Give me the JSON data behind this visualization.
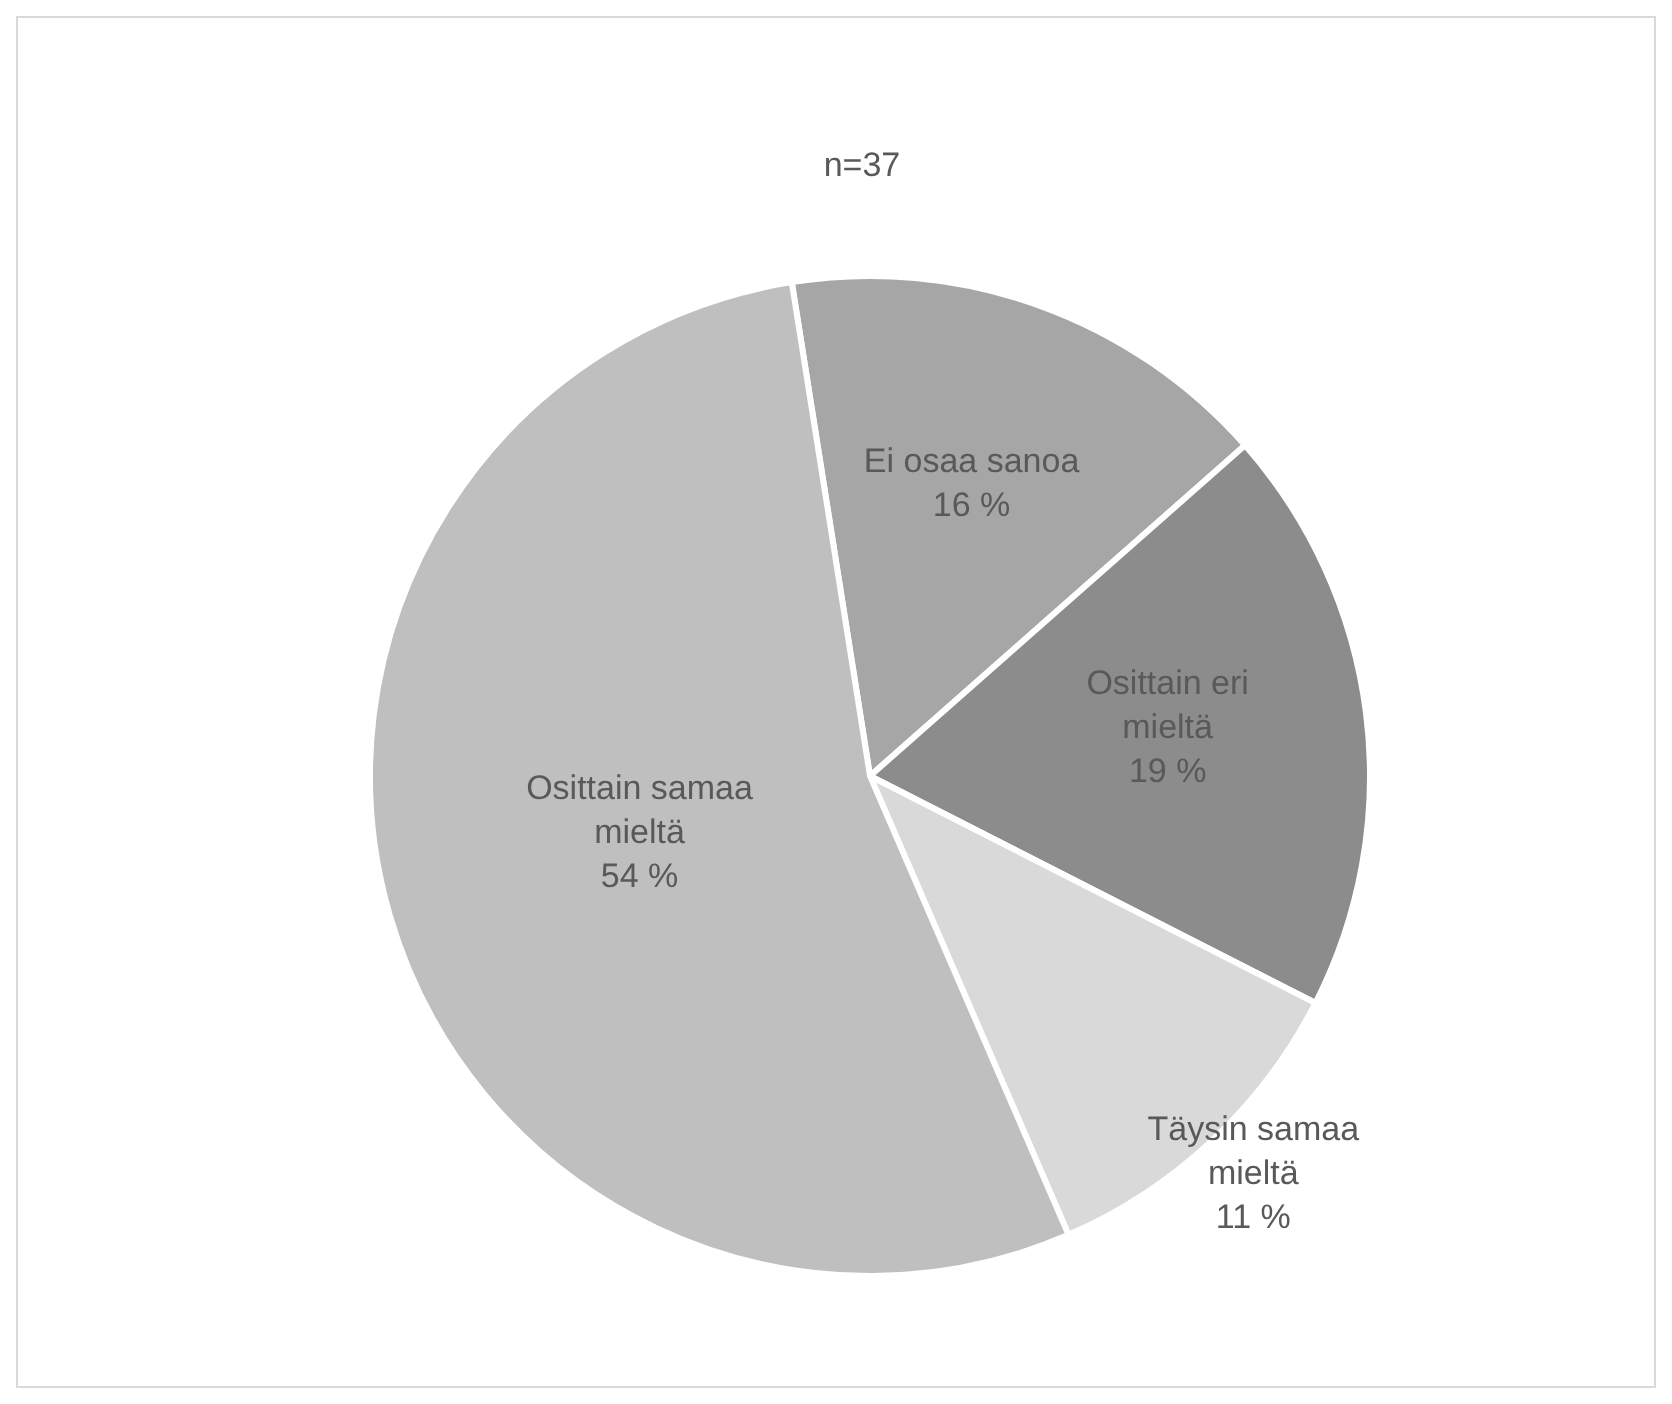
{
  "chart_data": {
    "type": "pie",
    "title": "n=37",
    "categories": [
      "Ei osaa sanoa",
      "Osittain eri mieltä",
      "Täysin samaa mieltä",
      "Osittain samaa mieltä"
    ],
    "values": [
      16,
      19,
      11,
      54
    ],
    "colors": [
      "#a6a6a6",
      "#8c8c8c",
      "#d9d9d9",
      "#bfbfbf"
    ],
    "value_labels": [
      "16 %",
      "19 %",
      "11 %",
      "54 %"
    ],
    "legend": false
  }
}
